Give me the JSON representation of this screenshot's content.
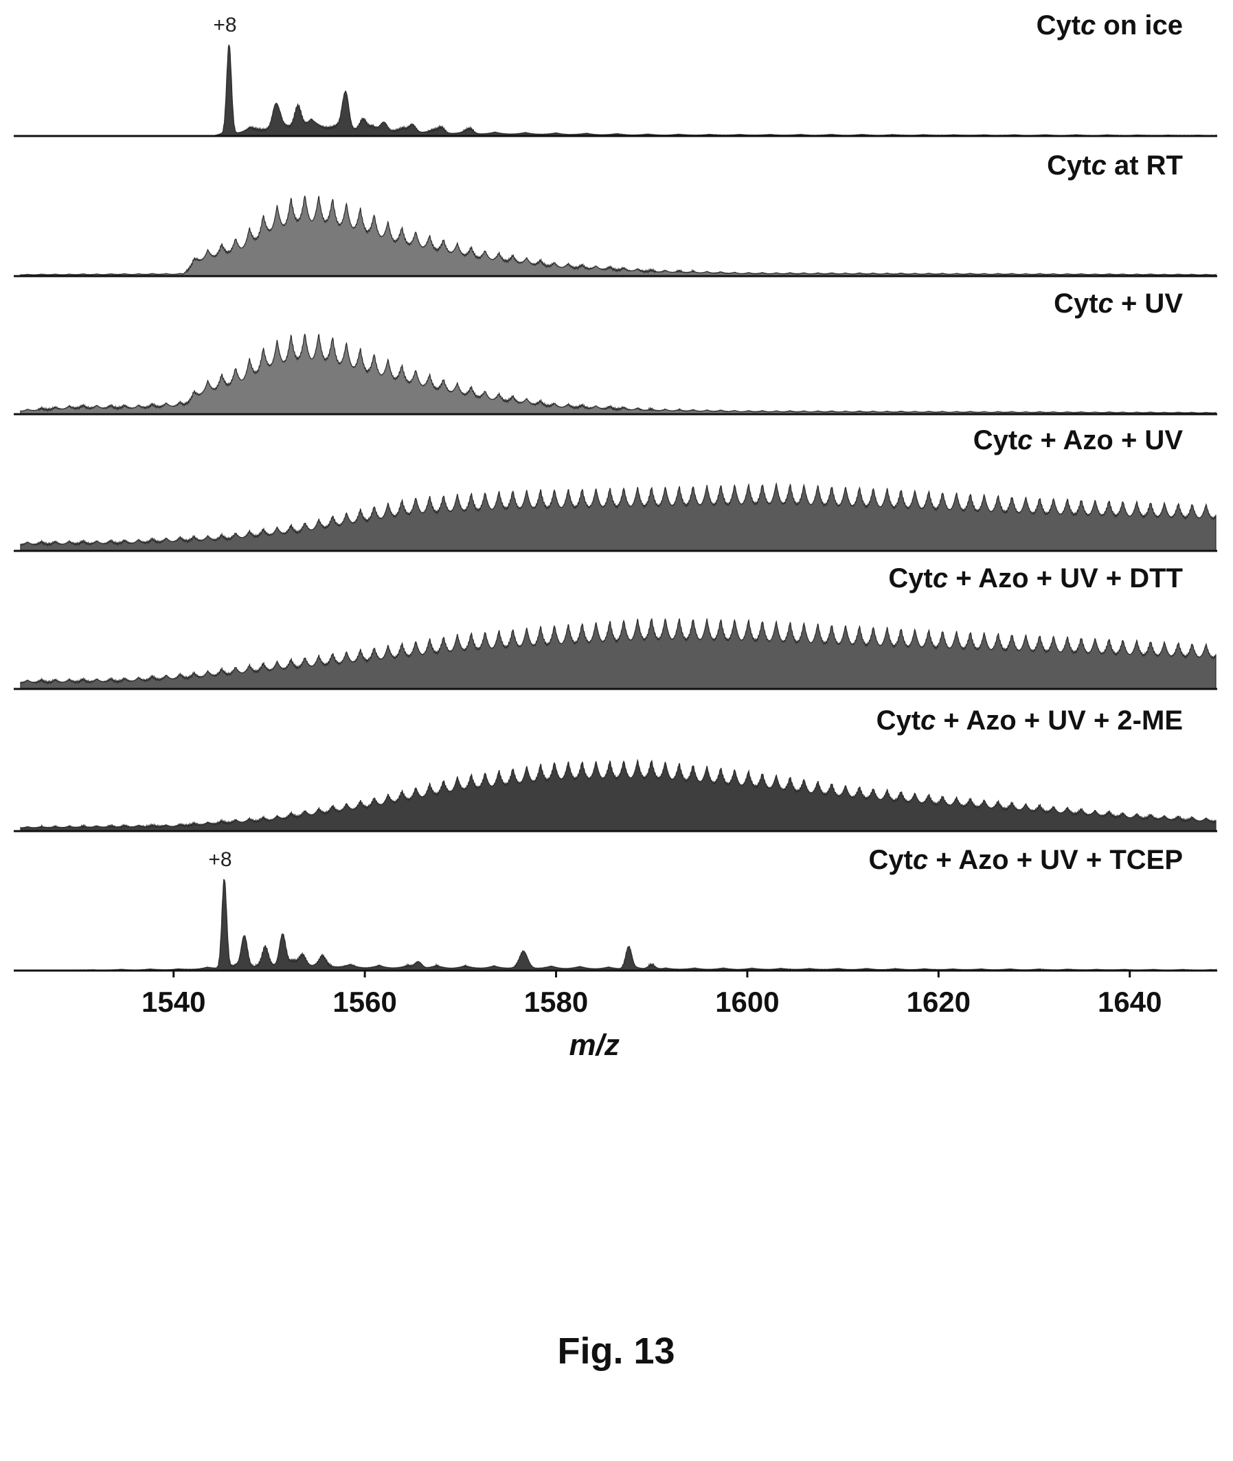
{
  "chart_data": {
    "type": "area",
    "layout": "stacked panels sharing one x-axis",
    "x_range": [
      1524,
      1649
    ],
    "x_ticks": [
      1540,
      1560,
      1580,
      1600,
      1620,
      1640
    ],
    "tick_labels": [
      "1540",
      "1560",
      "1580",
      "1600",
      "1620",
      "1640"
    ],
    "xlabel": "m/z",
    "ylabel": "",
    "grid": false,
    "legend": "none",
    "caption": "Fig. 13",
    "colors": {
      "fill_dark": "#3e3e3e",
      "fill_mid": "#5a5a5a",
      "fill_light": "#7a7a7a",
      "baseline": "#111111",
      "text": "#111111"
    },
    "panels": [
      {
        "label_prefix": "Cyt",
        "label_italic": "c",
        "label_suffix": " on ice",
        "peak_annotation": "+8",
        "peak_annotation_x": 1545.8,
        "fill": "fill_dark",
        "envelope": [
          [
            1524,
            0
          ],
          [
            1544,
            0
          ],
          [
            1546,
            0.05
          ],
          [
            1550,
            0.15
          ],
          [
            1555,
            0.2
          ],
          [
            1560,
            0.12
          ],
          [
            1570,
            0.05
          ],
          [
            1590,
            0.02
          ],
          [
            1649,
            0.01
          ]
        ],
        "peak_spacing": 3.2,
        "peak_modulation": 0.5,
        "spikes": [
          [
            1545.8,
            1.0,
            0.35
          ],
          [
            1550.7,
            0.25,
            0.5
          ],
          [
            1553.0,
            0.25,
            0.5
          ],
          [
            1558.0,
            0.38,
            0.45
          ],
          [
            1559.8,
            0.12,
            0.5
          ],
          [
            1562.0,
            0.1,
            0.5
          ],
          [
            1565.0,
            0.08,
            0.5
          ],
          [
            1568.0,
            0.06,
            0.5
          ],
          [
            1571.0,
            0.05,
            0.5
          ]
        ]
      },
      {
        "label_prefix": "Cyt",
        "label_italic": "c",
        "label_suffix": " at RT",
        "fill": "fill_light",
        "envelope": [
          [
            1524,
            0.02
          ],
          [
            1541,
            0.03
          ],
          [
            1542.5,
            0.25
          ],
          [
            1547,
            0.45
          ],
          [
            1550,
            0.75
          ],
          [
            1553,
            0.92
          ],
          [
            1556,
            0.9
          ],
          [
            1560,
            0.75
          ],
          [
            1563,
            0.58
          ],
          [
            1567,
            0.45
          ],
          [
            1572,
            0.3
          ],
          [
            1580,
            0.15
          ],
          [
            1590,
            0.07
          ],
          [
            1600,
            0.04
          ],
          [
            1649,
            0.02
          ]
        ],
        "peak_spacing": 1.45,
        "peak_modulation": 0.32,
        "spikes": []
      },
      {
        "label_prefix": "Cyt",
        "label_italic": "c",
        "label_suffix": " + UV",
        "fill": "fill_light",
        "envelope": [
          [
            1524,
            0.05
          ],
          [
            1530,
            0.1
          ],
          [
            1536,
            0.1
          ],
          [
            1541,
            0.14
          ],
          [
            1543,
            0.35
          ],
          [
            1547,
            0.55
          ],
          [
            1550,
            0.8
          ],
          [
            1553,
            0.92
          ],
          [
            1556,
            0.9
          ],
          [
            1560,
            0.72
          ],
          [
            1564,
            0.55
          ],
          [
            1568,
            0.4
          ],
          [
            1573,
            0.25
          ],
          [
            1580,
            0.12
          ],
          [
            1590,
            0.06
          ],
          [
            1600,
            0.04
          ],
          [
            1649,
            0.02
          ]
        ],
        "peak_spacing": 1.45,
        "peak_modulation": 0.32,
        "spikes": []
      },
      {
        "label_prefix": "Cyt",
        "label_italic": "c",
        "label_suffix": " + Azo + UV",
        "fill": "fill_mid",
        "envelope": [
          [
            1524,
            0.1
          ],
          [
            1535,
            0.12
          ],
          [
            1545,
            0.18
          ],
          [
            1553,
            0.3
          ],
          [
            1560,
            0.48
          ],
          [
            1565,
            0.6
          ],
          [
            1575,
            0.68
          ],
          [
            1590,
            0.72
          ],
          [
            1603,
            0.76
          ],
          [
            1615,
            0.7
          ],
          [
            1630,
            0.6
          ],
          [
            1649,
            0.52
          ]
        ],
        "peak_spacing": 1.45,
        "peak_modulation": 0.3,
        "spikes": []
      },
      {
        "label_prefix": "Cyt",
        "label_italic": "c",
        "label_suffix": " + Azo + UV + DTT",
        "fill": "fill_mid",
        "envelope": [
          [
            1524,
            0.1
          ],
          [
            1535,
            0.12
          ],
          [
            1542,
            0.18
          ],
          [
            1550,
            0.3
          ],
          [
            1560,
            0.45
          ],
          [
            1570,
            0.62
          ],
          [
            1580,
            0.72
          ],
          [
            1590,
            0.8
          ],
          [
            1600,
            0.78
          ],
          [
            1610,
            0.72
          ],
          [
            1620,
            0.66
          ],
          [
            1635,
            0.58
          ],
          [
            1649,
            0.5
          ]
        ],
        "peak_spacing": 1.45,
        "peak_modulation": 0.3,
        "spikes": []
      },
      {
        "label_prefix": "Cyt",
        "label_italic": "c",
        "label_suffix": " + Azo + UV + 2-ME",
        "fill": "fill_dark",
        "envelope": [
          [
            1524,
            0.05
          ],
          [
            1540,
            0.07
          ],
          [
            1550,
            0.16
          ],
          [
            1560,
            0.35
          ],
          [
            1570,
            0.62
          ],
          [
            1580,
            0.78
          ],
          [
            1590,
            0.8
          ],
          [
            1600,
            0.68
          ],
          [
            1610,
            0.52
          ],
          [
            1620,
            0.4
          ],
          [
            1630,
            0.3
          ],
          [
            1640,
            0.2
          ],
          [
            1649,
            0.14
          ]
        ],
        "peak_spacing": 1.45,
        "peak_modulation": 0.25,
        "spikes": []
      },
      {
        "label_prefix": "Cyt",
        "label_italic": "c",
        "label_suffix": " + Azo + UV + TCEP",
        "peak_annotation": "+8",
        "peak_annotation_x": 1545.3,
        "fill": "fill_dark",
        "envelope": [
          [
            1524,
            0
          ],
          [
            1541,
            0.02
          ],
          [
            1545,
            0.05
          ],
          [
            1552,
            0.12
          ],
          [
            1560,
            0.06
          ],
          [
            1580,
            0.05
          ],
          [
            1590,
            0.03
          ],
          [
            1649,
            0.01
          ]
        ],
        "peak_spacing": 3.0,
        "peak_modulation": 0.5,
        "spikes": [
          [
            1545.3,
            1.0,
            0.35
          ],
          [
            1547.4,
            0.35,
            0.45
          ],
          [
            1549.6,
            0.18,
            0.45
          ],
          [
            1551.4,
            0.35,
            0.45
          ],
          [
            1553.5,
            0.12,
            0.5
          ],
          [
            1555.6,
            0.08,
            0.5
          ],
          [
            1565.6,
            0.07,
            0.5
          ],
          [
            1576.6,
            0.17,
            0.6
          ],
          [
            1587.6,
            0.25,
            0.45
          ],
          [
            1590.0,
            0.05,
            0.5
          ]
        ]
      }
    ]
  }
}
